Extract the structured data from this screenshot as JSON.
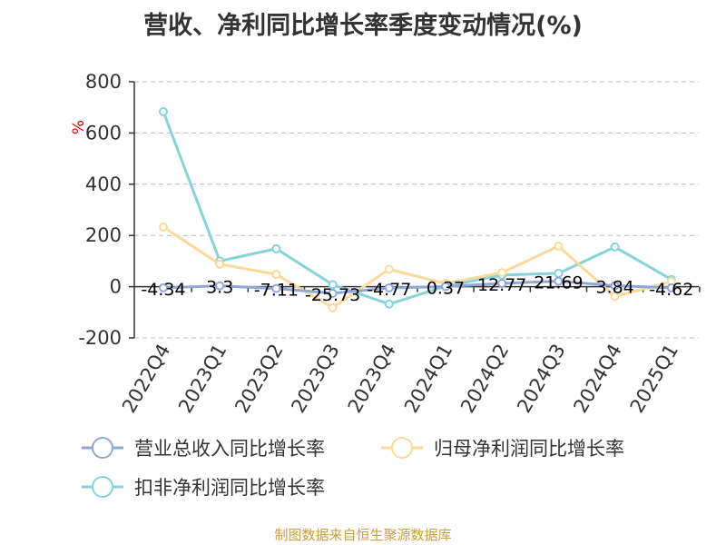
{
  "chart_data": {
    "type": "line",
    "title": "营收、净利同比增长率季度变动情况(%)",
    "ylabel": "%",
    "ylim": [
      -200,
      800
    ],
    "yticks": [
      800,
      600,
      400,
      200,
      0,
      -200
    ],
    "grid": true,
    "legend_position": "bottom",
    "categories": [
      "2022Q4",
      "2023Q1",
      "2023Q2",
      "2023Q3",
      "2023Q4",
      "2024Q1",
      "2024Q2",
      "2024Q3",
      "2024Q4",
      "2025Q1"
    ],
    "series": [
      {
        "name": "营业总收入同比增长率",
        "color": "#8fa8d6",
        "values": [
          -4.34,
          3.3,
          -7.11,
          -25.73,
          -4.77,
          0.37,
          12.77,
          21.69,
          3.84,
          -4.62
        ],
        "labels": [
          "-4.34",
          "3.3",
          "-7.11",
          "-25.73",
          "-4.77",
          "0.37",
          "12.77",
          "21.69",
          "3.84",
          "-4.62"
        ]
      },
      {
        "name": "归母净利润同比增长率",
        "color": "#fbd99a",
        "values": [
          233,
          88,
          48,
          -82,
          68,
          12,
          55,
          158,
          -38,
          20
        ]
      },
      {
        "name": "扣非净利润同比增长率",
        "color": "#87d3d8",
        "values": [
          683,
          100,
          148,
          8,
          -68,
          2,
          45,
          52,
          155,
          28
        ]
      }
    ]
  },
  "footer": {
    "source": "制图数据来自恒生聚源数据库"
  }
}
